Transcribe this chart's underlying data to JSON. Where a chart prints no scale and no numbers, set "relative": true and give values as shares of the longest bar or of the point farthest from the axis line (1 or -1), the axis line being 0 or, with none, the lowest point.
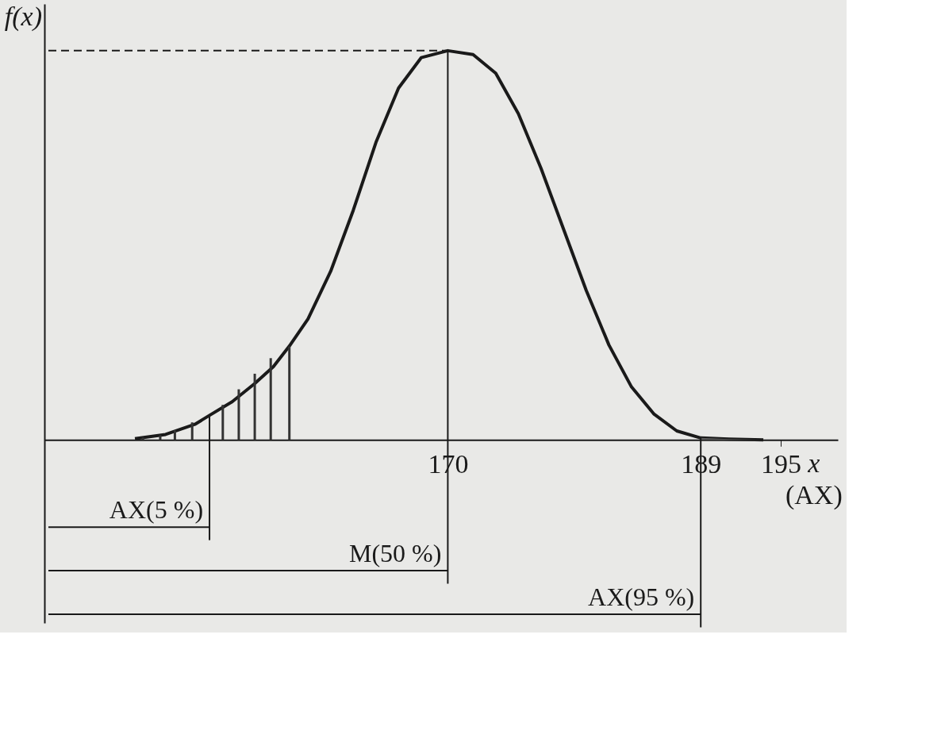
{
  "chart_data": {
    "type": "line",
    "relative": true,
    "ylabel": "f(x)",
    "xlabel": "x",
    "annotations": [
      "(AX)"
    ],
    "xlim": [
      140,
      199
    ],
    "xticks": [
      170,
      189,
      195
    ],
    "grid": false,
    "series": [
      {
        "color": "#1a1a1a",
        "x": [
          146.5,
          148.8,
          151.0,
          152.1,
          153.8,
          155.5,
          156.9,
          158.1,
          159.5,
          161.2,
          162.9,
          164.6,
          166.3,
          168.0,
          170,
          171.9,
          173.6,
          175.3,
          177.0,
          178.7,
          180.4,
          182.1,
          183.8,
          185.5,
          187.2,
          189,
          191.1,
          193.7
        ],
        "values": [
          0.003,
          0.014,
          0.04,
          0.063,
          0.098,
          0.145,
          0.188,
          0.241,
          0.311,
          0.433,
          0.59,
          0.764,
          0.904,
          0.982,
          1,
          0.99,
          0.942,
          0.838,
          0.698,
          0.541,
          0.384,
          0.244,
          0.136,
          0.066,
          0.023,
          0.005,
          0.002,
          0
        ]
      },
      {
        "type": "bar",
        "color": "#333333",
        "x": [
          147.1,
          148.4,
          149.5,
          150.8,
          152.1,
          153.1,
          154.3,
          155.5,
          156.7,
          158.1
        ],
        "values": [
          0.006,
          0.012,
          0.025,
          0.045,
          null,
          0.09,
          0.13,
          0.17,
          0.21,
          0.24
        ]
      },
      {
        "type": "area",
        "color": "#777777",
        "x": [
          189,
          191.1,
          193.7
        ],
        "values": [
          0.005,
          0.002,
          0
        ]
      }
    ],
    "ref_lines": [
      {
        "axis": "y",
        "value": 1,
        "line_style": "dashed"
      },
      {
        "axis": "x",
        "value": 152.1,
        "label": "AX(5 %)"
      },
      {
        "axis": "x",
        "value": 170,
        "label": "M(50 %)"
      },
      {
        "axis": "x",
        "value": 189,
        "label": "AX(95 %)"
      }
    ]
  }
}
